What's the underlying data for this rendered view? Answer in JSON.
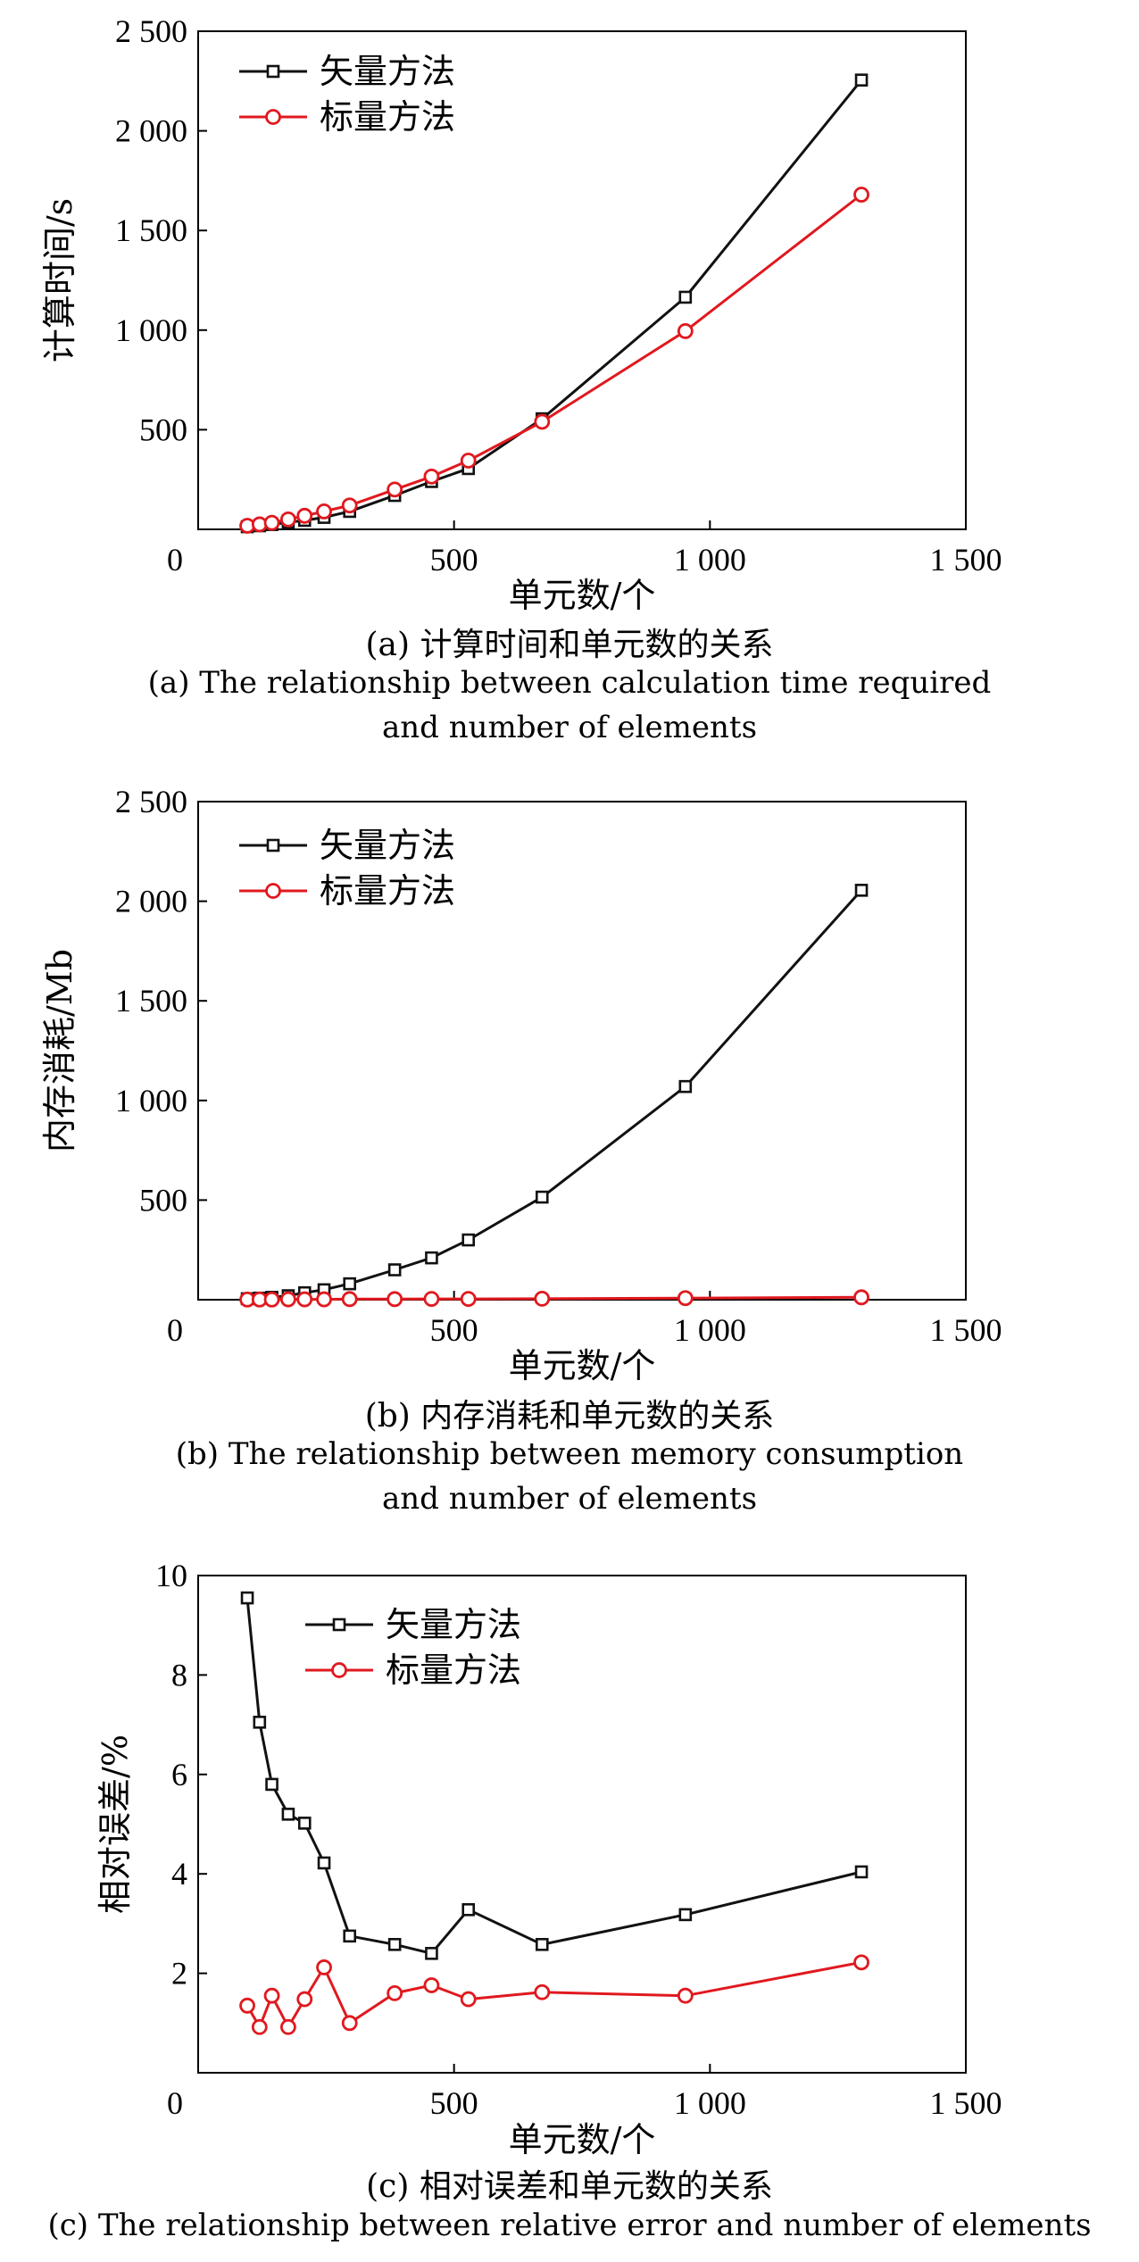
{
  "colors": {
    "vector": "#111111",
    "scalar": "#e0191f",
    "axis": "#000000"
  },
  "chart_data": [
    {
      "type": "line",
      "xlabel": "单元数/个",
      "ylabel": "计算时间/s",
      "xlim": [
        0,
        1500
      ],
      "ylim": [
        0,
        2500
      ],
      "xticks": [
        0,
        500,
        1000,
        1500
      ],
      "xtick_labels": [
        "0",
        "500",
        "1 000",
        "1 500"
      ],
      "yticks": [
        500,
        1000,
        1500,
        2000,
        2500
      ],
      "ytick_labels": [
        "500",
        "1 000",
        "1 500",
        "2 000",
        "2 500"
      ],
      "legend": "top-left",
      "grid": false,
      "series": [
        {
          "name": "矢量方法",
          "marker": "square",
          "color": "#111111",
          "x": [
            96,
            120,
            144,
            176,
            208,
            246,
            296,
            384,
            456,
            528,
            672,
            952,
            1296
          ],
          "y": [
            13,
            18,
            24,
            35,
            45,
            60,
            90,
            170,
            240,
            305,
            555,
            1165,
            2255
          ]
        },
        {
          "name": "标量方法",
          "marker": "circle",
          "color": "#e0191f",
          "x": [
            96,
            120,
            144,
            176,
            208,
            246,
            296,
            384,
            456,
            528,
            672,
            952,
            1296
          ],
          "y": [
            18,
            25,
            33,
            50,
            68,
            90,
            120,
            200,
            265,
            345,
            540,
            995,
            1680
          ]
        }
      ],
      "caption_cn": "(a) 计算时间和单元数的关系",
      "caption_en": [
        "(a) The relationship between calculation time required",
        "and number of elements"
      ]
    },
    {
      "type": "line",
      "xlabel": "单元数/个",
      "ylabel": "内存消耗/Mb",
      "xlim": [
        0,
        1500
      ],
      "ylim": [
        0,
        2500
      ],
      "xticks": [
        0,
        500,
        1000,
        1500
      ],
      "xtick_labels": [
        "0",
        "500",
        "1 000",
        "1 500"
      ],
      "yticks": [
        500,
        1000,
        1500,
        2000,
        2500
      ],
      "ytick_labels": [
        "500",
        "1 000",
        "1 500",
        "2 000",
        "2 500"
      ],
      "legend": "top-left",
      "grid": false,
      "series": [
        {
          "name": "矢量方法",
          "marker": "square",
          "color": "#111111",
          "x": [
            96,
            120,
            144,
            176,
            208,
            246,
            296,
            384,
            456,
            528,
            672,
            952,
            1296
          ],
          "y": [
            5,
            8,
            12,
            20,
            35,
            50,
            80,
            150,
            210,
            300,
            515,
            1070,
            2055
          ]
        },
        {
          "name": "标量方法",
          "marker": "circle",
          "color": "#e0191f",
          "x": [
            96,
            120,
            144,
            176,
            208,
            246,
            296,
            384,
            456,
            528,
            672,
            952,
            1296
          ],
          "y": [
            1,
            1,
            1,
            2,
            2,
            2,
            3,
            3,
            4,
            4,
            5,
            8,
            12
          ]
        }
      ],
      "caption_cn": "(b) 内存消耗和单元数的关系",
      "caption_en": [
        "(b) The relationship between memory consumption",
        "and number of elements"
      ]
    },
    {
      "type": "line",
      "xlabel": "单元数/个",
      "ylabel": "相对误差/%",
      "xlim": [
        0,
        1500
      ],
      "ylim": [
        0,
        10
      ],
      "xticks": [
        0,
        500,
        1000,
        1500
      ],
      "xtick_labels": [
        "0",
        "500",
        "1 000",
        "1 500"
      ],
      "yticks": [
        2,
        4,
        6,
        8,
        10
      ],
      "ytick_labels": [
        "2",
        "4",
        "6",
        "8",
        "10"
      ],
      "legend": "top-center",
      "grid": false,
      "series": [
        {
          "name": "矢量方法",
          "marker": "square",
          "color": "#111111",
          "x": [
            96,
            120,
            144,
            176,
            208,
            246,
            296,
            384,
            456,
            528,
            672,
            952,
            1296
          ],
          "y": [
            9.55,
            7.05,
            5.8,
            5.2,
            5.02,
            4.22,
            2.75,
            2.58,
            2.4,
            3.28,
            2.58,
            3.18,
            4.04
          ]
        },
        {
          "name": "标量方法",
          "marker": "circle",
          "color": "#e0191f",
          "x": [
            96,
            120,
            144,
            176,
            208,
            246,
            296,
            384,
            456,
            528,
            672,
            952,
            1296
          ],
          "y": [
            1.35,
            0.92,
            1.55,
            0.92,
            1.48,
            2.12,
            1.0,
            1.6,
            1.76,
            1.48,
            1.62,
            1.55,
            2.22
          ]
        }
      ],
      "caption_cn": "(c) 相对误差和单元数的关系",
      "caption_en": [
        "(c) The relationship between relative error and number of elements"
      ]
    }
  ]
}
